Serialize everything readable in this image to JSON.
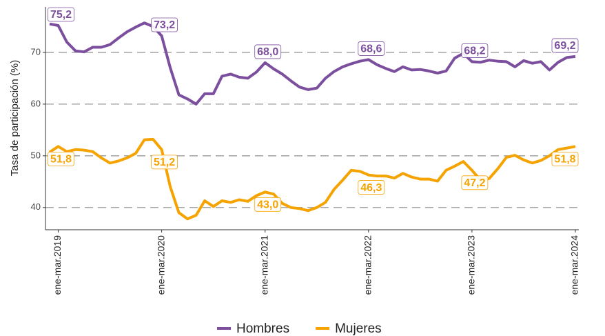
{
  "chart_data": {
    "type": "line",
    "y_label": "Tasa de participación (%)",
    "categories": [
      null,
      "ene-mar.2019",
      null,
      null,
      null,
      null,
      null,
      null,
      null,
      null,
      null,
      null,
      null,
      "ene-mar.2020",
      null,
      null,
      null,
      null,
      null,
      null,
      null,
      null,
      null,
      null,
      null,
      "ene-mar.2021",
      null,
      null,
      null,
      null,
      null,
      null,
      null,
      null,
      null,
      null,
      null,
      "ene-mar.2022",
      null,
      null,
      null,
      null,
      null,
      null,
      null,
      null,
      null,
      null,
      null,
      "ene-mar.2023",
      null,
      null,
      null,
      null,
      null,
      null,
      null,
      null,
      null,
      null,
      null,
      "ene-mar.2024"
    ],
    "series": [
      {
        "name": "Hombres",
        "color": "#7b4f9e",
        "values": [
          75.5,
          75.2,
          72.0,
          70.3,
          70.1,
          71.0,
          71.0,
          71.5,
          72.8,
          74.0,
          74.9,
          75.7,
          75.0,
          73.2,
          67.0,
          61.8,
          61.0,
          60.0,
          62.0,
          62.0,
          65.4,
          65.8,
          65.2,
          65.0,
          66.2,
          68.0,
          66.8,
          65.8,
          64.5,
          63.3,
          62.8,
          63.1,
          65.0,
          66.3,
          67.2,
          67.8,
          68.3,
          68.6,
          67.6,
          66.9,
          66.3,
          67.2,
          66.6,
          66.7,
          66.4,
          66.0,
          66.4,
          68.9,
          69.8,
          68.2,
          68.1,
          68.5,
          68.3,
          68.2,
          67.2,
          68.4,
          67.9,
          68.2,
          66.6,
          68.1,
          69.0,
          69.2
        ],
        "value_labels": [
          null,
          "75,2",
          null,
          null,
          null,
          null,
          null,
          null,
          null,
          null,
          null,
          null,
          null,
          "73,2",
          null,
          null,
          null,
          null,
          null,
          null,
          null,
          null,
          null,
          null,
          null,
          "68,0",
          null,
          null,
          null,
          null,
          null,
          null,
          null,
          null,
          null,
          null,
          null,
          "68,6",
          null,
          null,
          null,
          null,
          null,
          null,
          null,
          null,
          null,
          null,
          null,
          "68,2",
          null,
          null,
          null,
          null,
          null,
          null,
          null,
          null,
          null,
          null,
          null,
          "69,2"
        ]
      },
      {
        "name": "Mujeres",
        "color": "#f5a300",
        "values": [
          50.7,
          51.8,
          50.8,
          51.2,
          51.1,
          50.8,
          49.6,
          48.6,
          49.0,
          49.6,
          50.5,
          53.1,
          53.2,
          51.2,
          44.0,
          39.0,
          37.8,
          38.5,
          41.3,
          40.2,
          41.3,
          41.0,
          41.5,
          41.2,
          42.3,
          43.0,
          42.6,
          40.8,
          40.0,
          39.8,
          39.4,
          40.0,
          41.0,
          43.5,
          45.3,
          47.2,
          47.0,
          46.3,
          46.1,
          46.1,
          45.7,
          46.6,
          45.9,
          45.5,
          45.5,
          45.1,
          47.2,
          48.0,
          48.9,
          47.2,
          45.3,
          45.6,
          47.5,
          49.7,
          50.1,
          49.2,
          48.6,
          49.1,
          50.0,
          51.2,
          51.5,
          51.8
        ],
        "value_labels": [
          null,
          "51,8",
          null,
          null,
          null,
          null,
          null,
          null,
          null,
          null,
          null,
          null,
          null,
          "51,2",
          null,
          null,
          null,
          null,
          null,
          null,
          null,
          null,
          null,
          null,
          null,
          "43,0",
          null,
          null,
          null,
          null,
          null,
          null,
          null,
          null,
          null,
          null,
          null,
          "46,3",
          null,
          null,
          null,
          null,
          null,
          null,
          null,
          null,
          null,
          null,
          null,
          "47,2",
          null,
          null,
          null,
          null,
          null,
          null,
          null,
          null,
          null,
          null,
          null,
          "51,8"
        ]
      }
    ],
    "ylim": [
      35.7,
      78.8
    ],
    "yticks": [
      40,
      50,
      60,
      70
    ],
    "grid": true,
    "legend": "bottom"
  }
}
